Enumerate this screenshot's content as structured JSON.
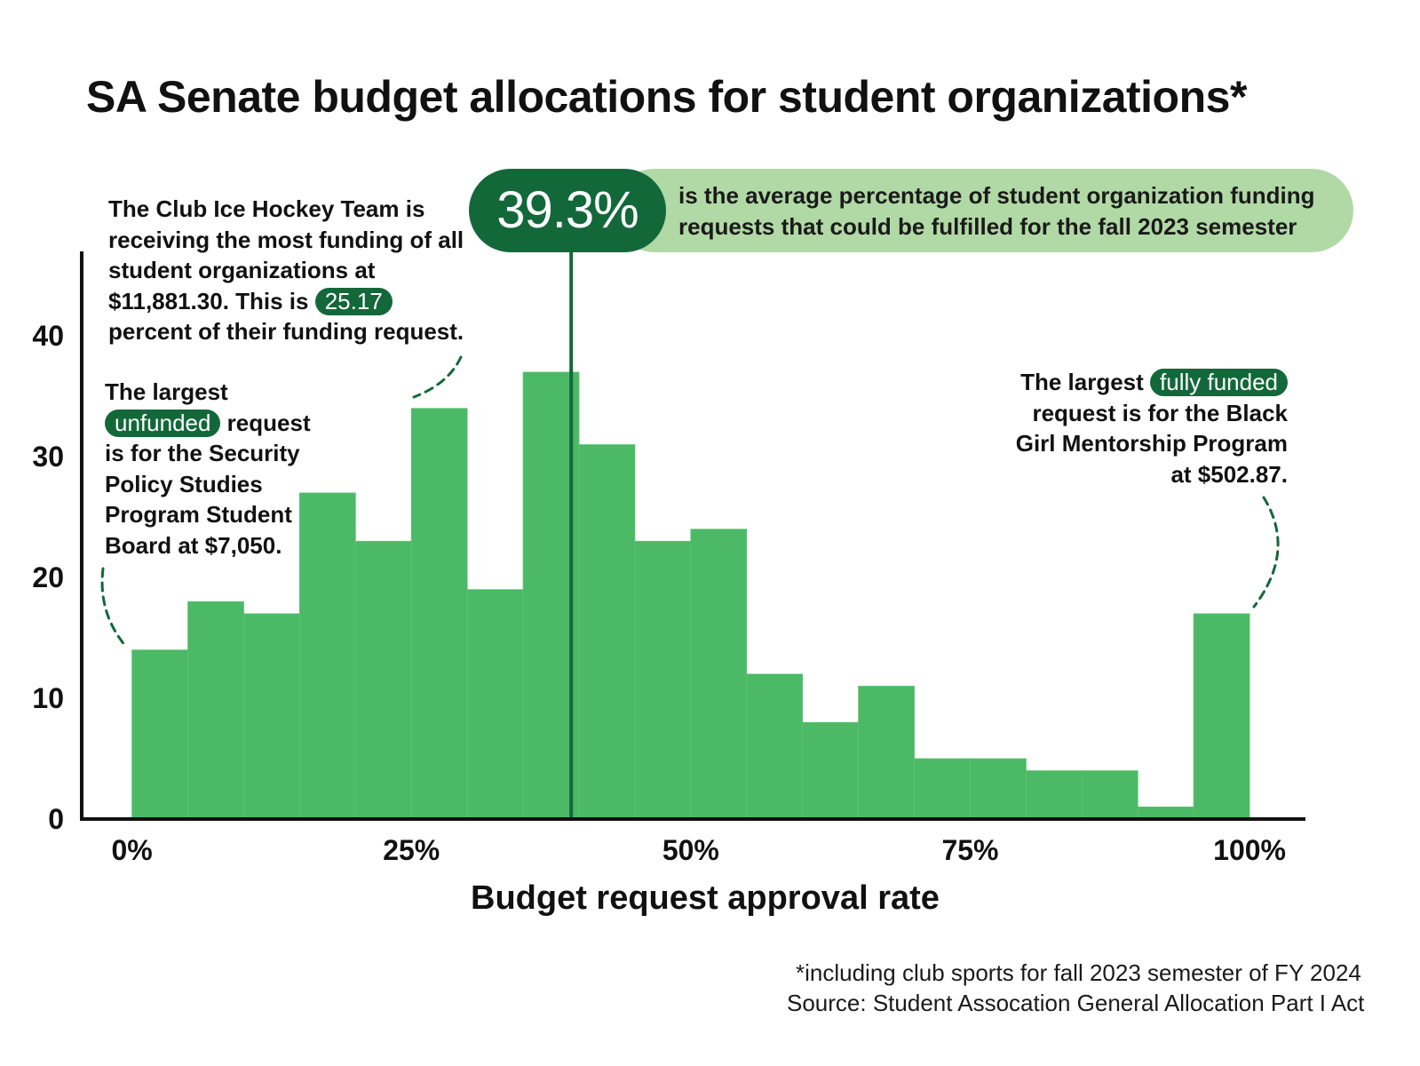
{
  "chart_data": {
    "type": "bar",
    "title": "SA Senate budget allocations for student organizations*",
    "xlabel": "Budget request approval rate",
    "ylabel": "",
    "x_ticks": [
      "0%",
      "25%",
      "50%",
      "75%",
      "100%"
    ],
    "y_ticks": [
      "0",
      "10",
      "20",
      "30",
      "40"
    ],
    "ylim": [
      0,
      47
    ],
    "xlim": [
      -4.5,
      105
    ],
    "bin_width": 5,
    "bins": [
      0,
      5,
      10,
      15,
      20,
      25,
      30,
      35,
      40,
      45,
      50,
      55,
      60,
      65,
      70,
      75,
      80,
      85,
      90,
      95
    ],
    "values": [
      14,
      18,
      17,
      27,
      23,
      34,
      19,
      37,
      31,
      23,
      24,
      12,
      8,
      11,
      5,
      5,
      4,
      4,
      1,
      17
    ],
    "mean_line": 39.3,
    "bar_color": "#4bb966",
    "mean_color": "#13683a"
  },
  "callout": {
    "value": "39.3%",
    "text": "is the average percentage of student organization funding requests that could be fulfilled for the fall 2023 semester"
  },
  "annotations": {
    "hockey": {
      "before": "The Club Ice Hockey Team is receiving the most funding of all student organizations at $11,881.30. This is ",
      "highlight": "25.17",
      "after": " percent of their funding request."
    },
    "unfunded": {
      "before": "The largest ",
      "highlight": "unfunded",
      "after": " request is for the Security Policy Studies Program Student Board at $7,050."
    },
    "full": {
      "before": "The largest ",
      "highlight": "fully funded",
      "after": "request is for the Black Girl Mentorship Program at $502.87."
    }
  },
  "footnote": {
    "line1": "*including club sports for fall 2023 semester of FY 2024",
    "line2": "Source: Student Assocation General Allocation Part I Act"
  }
}
